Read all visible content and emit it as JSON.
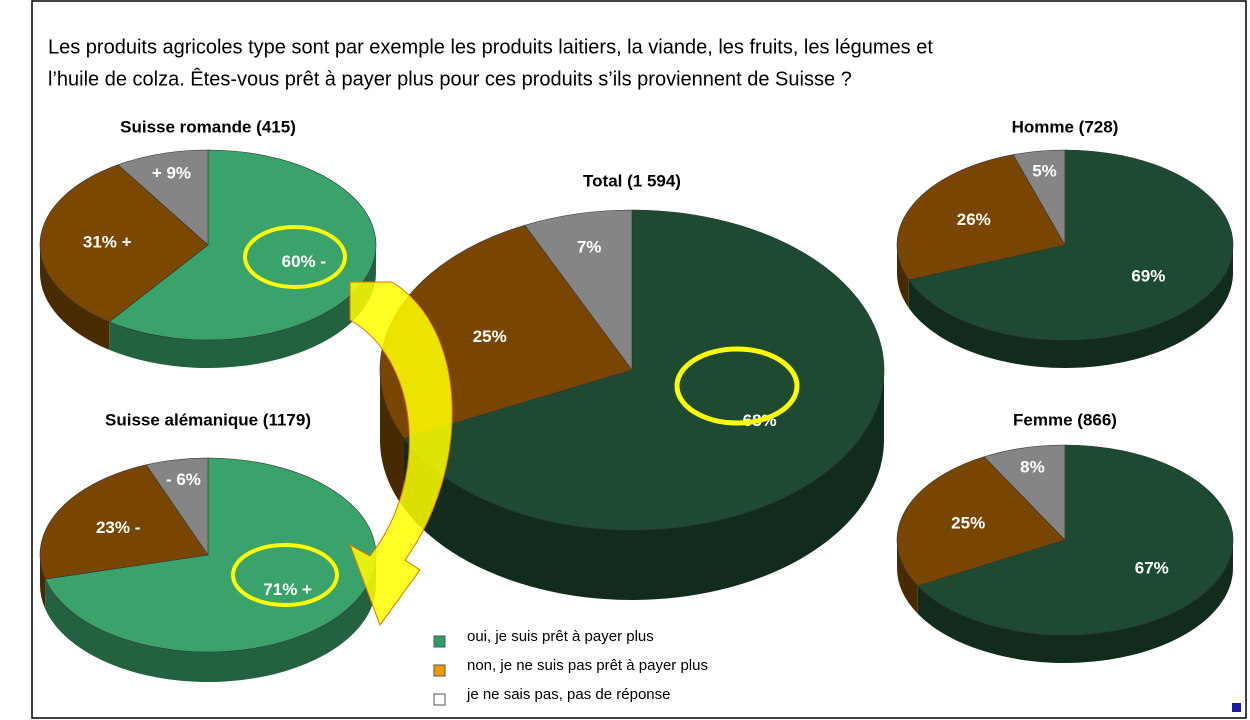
{
  "question": [
    "Les produits agricoles type sont par exemple les produits laitiers, la viande, les fruits, les légumes et",
    "l’huile de colza. Êtes-vous prêt  à payer plus pour ces produits s’ils proviennent de Suisse ?"
  ],
  "legend": {
    "labels": [
      "oui, je suis prêt à payer plus",
      "non, je ne suis pas prêt à payer plus",
      "je ne sais pas, pas de réponse"
    ],
    "colors": [
      "#2e9e63",
      "#f39a00",
      "#ffffff"
    ]
  },
  "chart_data": [
    {
      "type": "pie",
      "title": "Suisse romande (415)",
      "values": [
        60,
        31,
        9
      ],
      "value_labels": [
        "60% -",
        "31% +",
        "+ 9%"
      ],
      "colors": [
        "#3aa36c",
        "#7a4800",
        "#858585"
      ]
    },
    {
      "type": "pie",
      "title": "Total (1 594)",
      "values": [
        68,
        25,
        7
      ],
      "value_labels": [
        "68%",
        "25%",
        "7%"
      ],
      "colors": [
        "#1d4a30",
        "#784600",
        "#858585"
      ]
    },
    {
      "type": "pie",
      "title": "Homme (728)",
      "values": [
        69,
        26,
        5
      ],
      "value_labels": [
        "69%",
        "26%",
        "5%"
      ],
      "colors": [
        "#1d4a30",
        "#784600",
        "#858585"
      ]
    },
    {
      "type": "pie",
      "title": "Suisse alémanique (1179)",
      "values": [
        71,
        23,
        6
      ],
      "value_labels": [
        "71% +",
        "23% -",
        "- 6%"
      ],
      "colors": [
        "#3aa36c",
        "#784600",
        "#858585"
      ]
    },
    {
      "type": "pie",
      "title": "Femme (866)",
      "values": [
        67,
        25,
        8
      ],
      "value_labels": [
        "67%",
        "25%",
        "8%"
      ],
      "colors": [
        "#1d4a30",
        "#784600",
        "#858585"
      ]
    }
  ]
}
